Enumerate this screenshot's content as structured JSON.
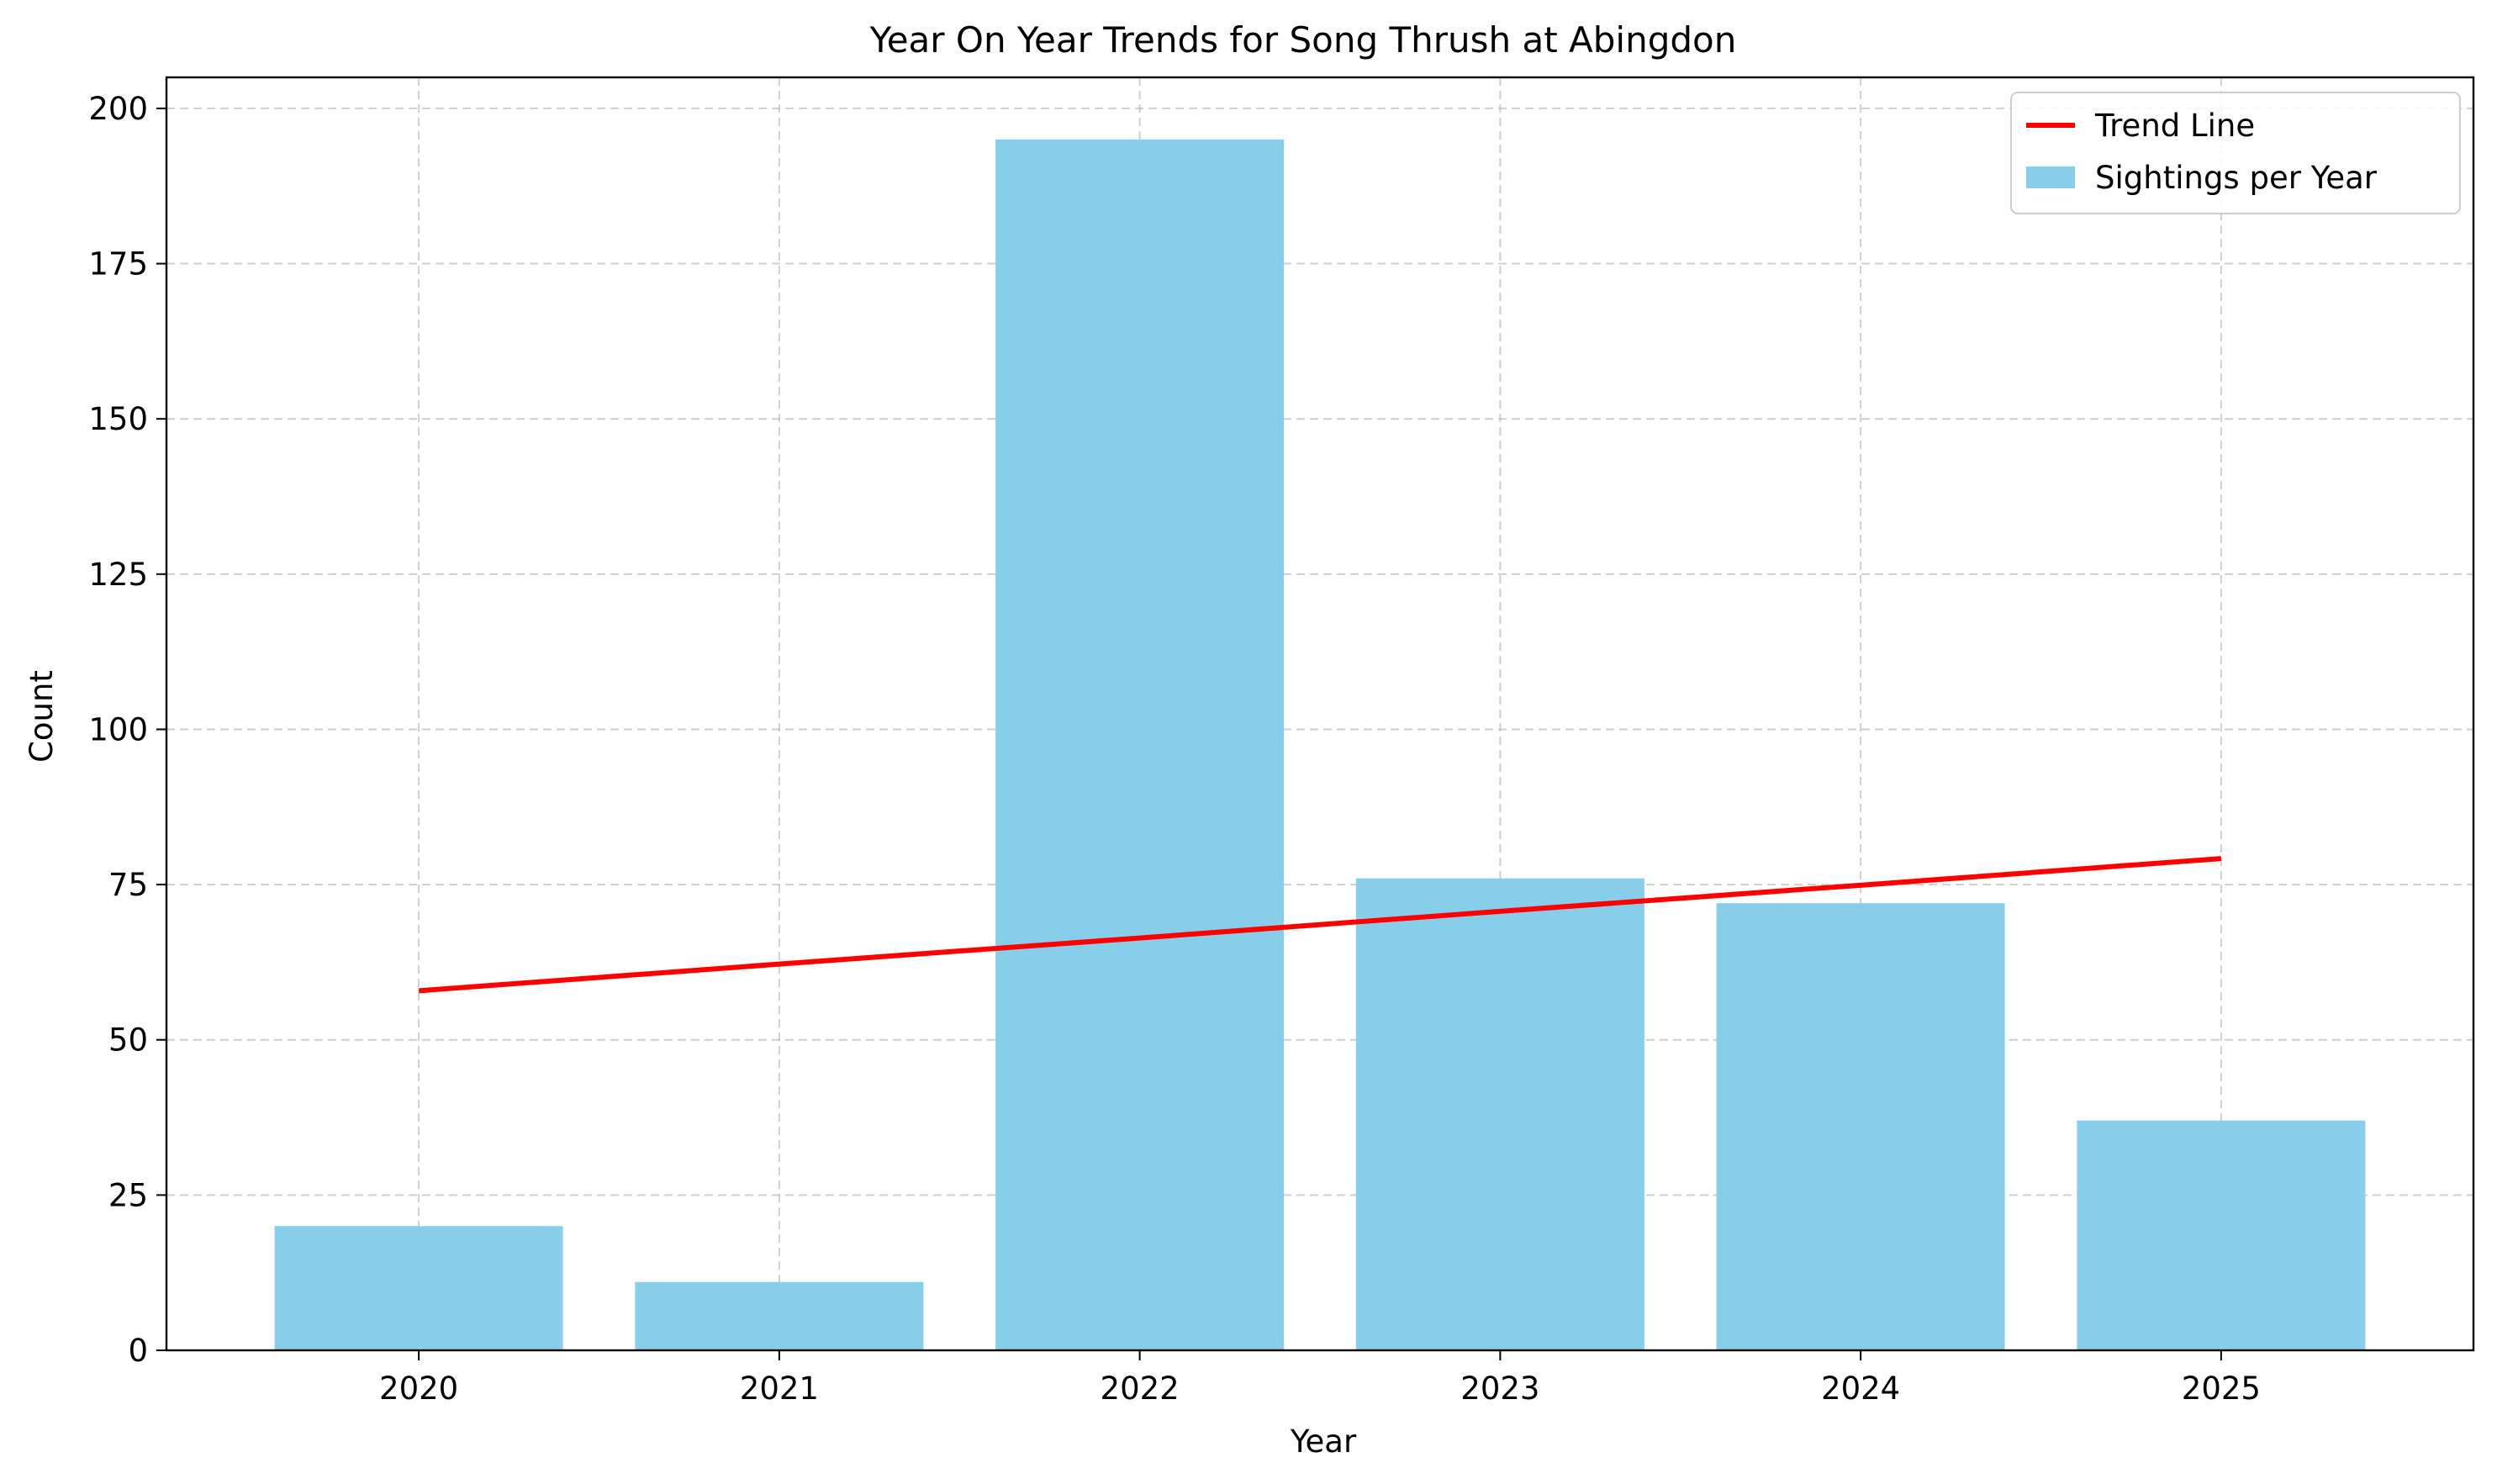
{
  "chart_data": {
    "type": "bar",
    "title": "Year On Year Trends for Song Thrush at Abingdon",
    "xlabel": "Year",
    "ylabel": "Count",
    "categories": [
      "2020",
      "2021",
      "2022",
      "2023",
      "2024",
      "2025"
    ],
    "series": [
      {
        "name": "Sightings per Year",
        "type": "bar",
        "values": [
          20,
          11,
          195,
          76,
          72,
          37
        ],
        "color": "#87CEEB"
      },
      {
        "name": "Trend Line",
        "type": "line",
        "values": [
          57.9,
          62.2,
          66.4,
          70.7,
          74.9,
          79.2
        ],
        "color": "#FF0000"
      }
    ],
    "yticks": [
      "0",
      "25",
      "50",
      "75",
      "100",
      "125",
      "150",
      "175",
      "200"
    ],
    "ylim": [
      0,
      205
    ],
    "grid": true,
    "legend_position": "top-right"
  }
}
